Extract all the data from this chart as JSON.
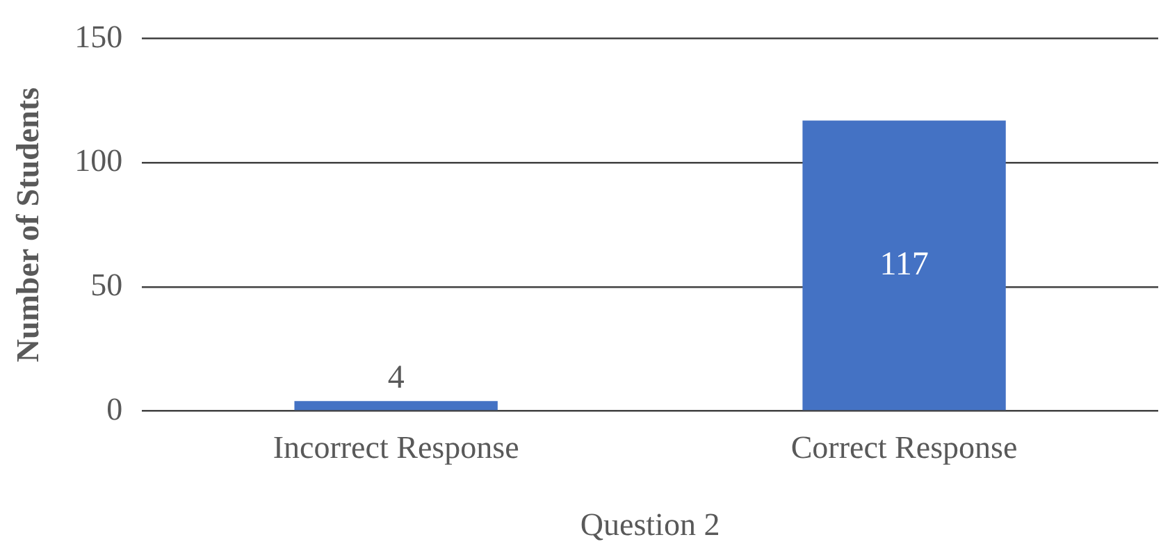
{
  "chart_data": {
    "type": "bar",
    "xlabel": "Question 2",
    "ylabel": "Number of Students",
    "categories": [
      "Incorrect Response",
      "Correct Response"
    ],
    "values": [
      4,
      117
    ],
    "color": "#4472c4",
    "ylim": [
      0,
      150
    ],
    "yticks": [
      0,
      50,
      100,
      150
    ],
    "grid": "y",
    "data_labels": true
  }
}
